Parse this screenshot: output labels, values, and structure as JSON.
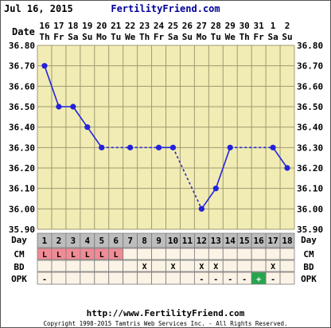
{
  "header": {
    "date": "Jul 16, 2015",
    "site": "FertilityFriend.com"
  },
  "footer": {
    "url": "http://www.FertilityFriend.com",
    "copyright": "Copyright 1998-2015 Tamtris Web Services Inc. - All Rights Reserved."
  },
  "labels": {
    "date": "Date",
    "day": "Day",
    "cm": "CM",
    "bd": "BD",
    "opk": "OPK"
  },
  "colors": {
    "line": "#2222dd",
    "grid": "#a09a70",
    "plot_bg": "#f1ecb4",
    "day_row_bg": "#bdbdbd",
    "row_bg": "#fbf3e6",
    "cm_bg": "#f08c96",
    "opk_pos_bg": "#26a64c"
  },
  "chart_data": {
    "type": "line",
    "ylim": [
      35.9,
      36.8
    ],
    "yticks": [
      "36.80",
      "36.70",
      "36.60",
      "36.50",
      "36.40",
      "36.30",
      "36.20",
      "36.10",
      "36.00",
      "35.90"
    ],
    "dates": [
      "16",
      "17",
      "18",
      "19",
      "20",
      "21",
      "22",
      "23",
      "24",
      "25",
      "26",
      "27",
      "28",
      "29",
      "30",
      "31",
      "1",
      "2"
    ],
    "weekdays": [
      "Th",
      "Fr",
      "Sa",
      "Su",
      "Mo",
      "Tu",
      "We",
      "Th",
      "Fr",
      "Sa",
      "Su",
      "Mo",
      "Tu",
      "We",
      "Th",
      "Fr",
      "Sa",
      "Su"
    ],
    "cycle_days": [
      "1",
      "2",
      "3",
      "4",
      "5",
      "6",
      "7",
      "8",
      "9",
      "10",
      "11",
      "12",
      "13",
      "14",
      "15",
      "16",
      "17",
      "18"
    ],
    "temps": [
      36.7,
      36.5,
      36.5,
      36.4,
      36.3,
      null,
      36.3,
      null,
      36.3,
      36.3,
      null,
      36.0,
      36.1,
      36.3,
      null,
      null,
      36.3,
      36.2
    ],
    "cm": [
      "L",
      "L",
      "L",
      "L",
      "L",
      "L",
      "",
      "",
      "",
      "",
      "",
      "",
      "",
      "",
      "",
      "",
      "",
      ""
    ],
    "bd": [
      "",
      "",
      "",
      "",
      "",
      "",
      "",
      "X",
      "",
      "X",
      "",
      "X",
      "X",
      "",
      "",
      "",
      "X",
      ""
    ],
    "opk": [
      "-",
      "",
      "",
      "",
      "",
      "",
      "",
      "",
      "",
      "",
      "",
      "-",
      "-",
      "-",
      "-",
      "+",
      "-",
      ""
    ]
  }
}
